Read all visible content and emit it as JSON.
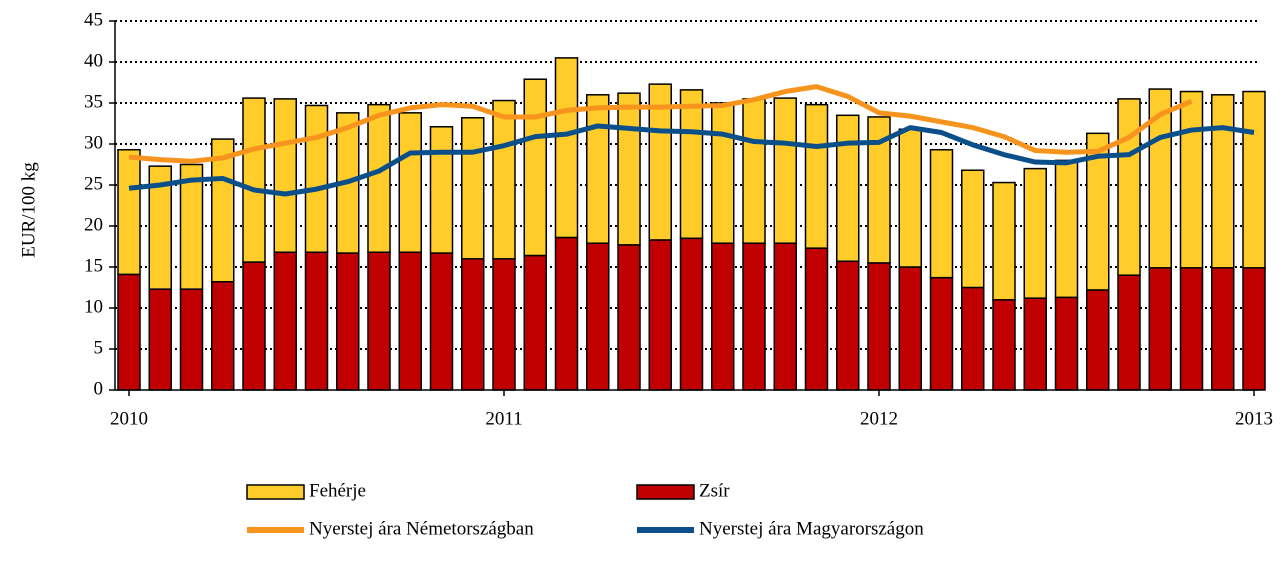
{
  "chart_data": {
    "type": "bar",
    "stacked": true,
    "y_label": "EUR/100 kg",
    "categories": [
      null,
      null,
      null,
      null,
      null,
      null,
      null,
      null,
      null,
      null,
      null,
      null,
      null,
      null,
      null,
      null,
      null,
      null,
      null,
      null,
      null,
      null,
      null,
      null,
      null,
      null,
      null,
      null,
      null,
      null,
      null,
      null,
      null,
      null,
      null,
      null,
      null
    ],
    "xticks": [
      {
        "value": 0,
        "label": "2010"
      },
      {
        "value": 12,
        "label": "2011"
      },
      {
        "value": 24,
        "label": "2012"
      },
      {
        "value": 36,
        "label": "2013"
      }
    ],
    "ylim": [
      0,
      45
    ],
    "yticks": [
      0,
      5,
      10,
      15,
      20,
      25,
      30,
      35,
      40,
      45
    ],
    "grid": true,
    "legend": "bottom",
    "series": [
      {
        "name": "Zsír",
        "type": "bar",
        "color": "#c00000",
        "values": [
          14.1,
          12.3,
          12.3,
          13.2,
          15.6,
          16.8,
          16.8,
          16.7,
          16.8,
          16.8,
          16.7,
          16.0,
          16.0,
          16.4,
          18.6,
          17.9,
          17.7,
          18.3,
          18.5,
          17.9,
          17.9,
          17.9,
          17.3,
          15.7,
          15.5,
          15.0,
          13.7,
          12.5,
          11.0,
          11.2,
          11.3,
          12.2,
          14.0,
          14.9,
          14.9,
          14.9,
          14.9
        ]
      },
      {
        "name": "Fehérje",
        "type": "bar",
        "color": "#ffcc29",
        "values": [
          15.2,
          15.0,
          15.2,
          17.4,
          20.0,
          18.7,
          17.9,
          17.1,
          18.0,
          17.0,
          15.4,
          17.2,
          19.3,
          21.5,
          21.9,
          18.1,
          18.5,
          19.0,
          18.1,
          17.1,
          17.6,
          17.7,
          17.5,
          17.8,
          17.8,
          16.8,
          15.6,
          14.3,
          14.3,
          15.8,
          16.7,
          19.1,
          21.5,
          21.8,
          21.5,
          21.1,
          21.5
        ]
      },
      {
        "name": "Nyerstej ára Németországban",
        "type": "line",
        "color": "#f7941d",
        "values": [
          28.4,
          28.1,
          27.9,
          28.3,
          29.4,
          30.1,
          30.8,
          32.0,
          33.5,
          34.4,
          34.8,
          34.6,
          33.3,
          33.3,
          34.1,
          34.4,
          34.5,
          34.5,
          34.6,
          34.7,
          35.4,
          36.4,
          37.0,
          35.8,
          33.8,
          33.4,
          32.7,
          32.0,
          30.9,
          29.2,
          29.0,
          29.1,
          30.8,
          33.6,
          35.2,
          null,
          null
        ]
      },
      {
        "name": "Nyerstej ára Magyarországon",
        "type": "line",
        "color": "#0b4f8a",
        "values": [
          24.6,
          25.0,
          25.6,
          25.8,
          24.4,
          23.9,
          24.5,
          25.4,
          26.7,
          28.9,
          29.0,
          29.0,
          29.8,
          30.9,
          31.2,
          32.2,
          31.9,
          31.6,
          31.5,
          31.2,
          30.3,
          30.1,
          29.7,
          30.1,
          30.2,
          32.0,
          31.4,
          29.9,
          28.7,
          27.8,
          27.7,
          28.5,
          28.7,
          30.8,
          31.7,
          32.0,
          31.4
        ]
      }
    ]
  }
}
